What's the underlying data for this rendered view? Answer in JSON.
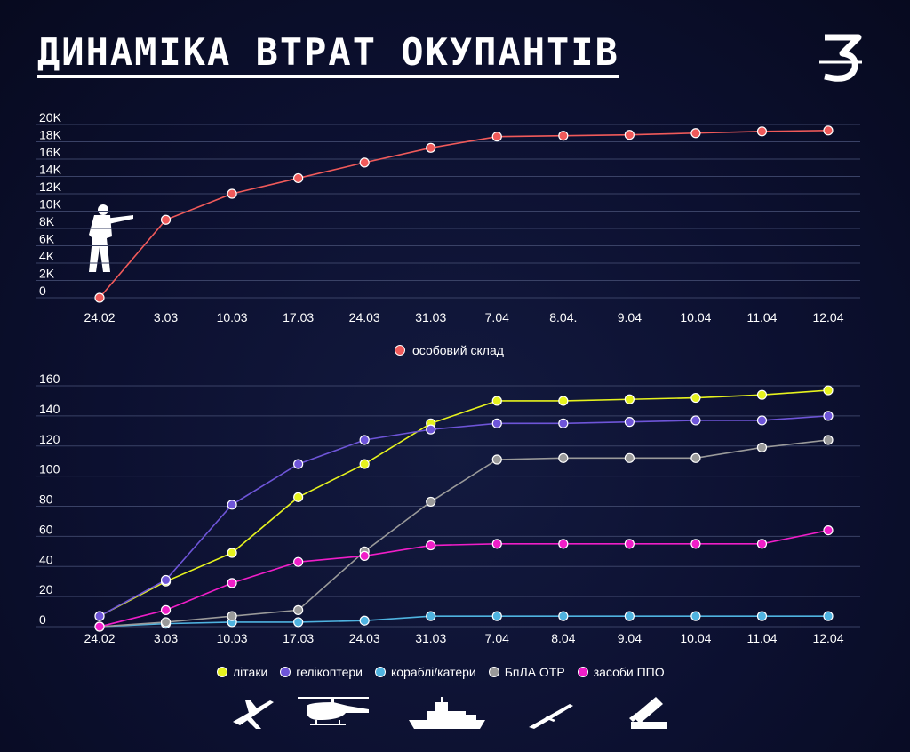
{
  "title": "ДИНАМІКА ВТРАТ ОКУПАНТІВ",
  "logo_text": "З",
  "colors": {
    "background": "#0c1030",
    "grid": "#3a4266",
    "personnel": "#f05a5a",
    "aircraft": "#e6f21e",
    "helicopters": "#6e55d8",
    "ships": "#4fb3e0",
    "drones": "#9a9a9a",
    "air_defense": "#f01ec8"
  },
  "icons": [
    "soldier-icon",
    "airplane-icon",
    "helicopter-icon",
    "warship-icon",
    "drone-icon",
    "air-defense-icon"
  ],
  "chart_data": [
    {
      "type": "line",
      "categories": [
        "24.02",
        "3.03",
        "10.03",
        "17.03",
        "24.03",
        "31.03",
        "7.04",
        "8.04.",
        "9.04",
        "10.04",
        "11.04",
        "12.04"
      ],
      "y_tick_labels": [
        "0",
        "2K",
        "4K",
        "6K",
        "8K",
        "10K",
        "12K",
        "14K",
        "16K",
        "18K",
        "20K"
      ],
      "ylim": [
        0,
        20000
      ],
      "grid": true,
      "legend_placement": "bottom",
      "series": [
        {
          "name": "особовий склад",
          "color": "#f05a5a",
          "values": [
            0,
            9000,
            12000,
            13800,
            15600,
            17300,
            18600,
            18700,
            18800,
            19000,
            19200,
            19300
          ]
        }
      ]
    },
    {
      "type": "line",
      "categories": [
        "24.02",
        "3.03",
        "10.03",
        "17.03",
        "24.03",
        "31.03",
        "7.04",
        "8.04",
        "9.04",
        "10.04",
        "11.04",
        "12.04"
      ],
      "y_tick_labels": [
        "0",
        "20",
        "40",
        "60",
        "80",
        "100",
        "120",
        "140",
        "160"
      ],
      "ylim": [
        0,
        160
      ],
      "grid": true,
      "legend_placement": "bottom",
      "series": [
        {
          "name": "літаки",
          "color": "#e6f21e",
          "values": [
            7,
            30,
            49,
            86,
            108,
            135,
            150,
            150,
            151,
            152,
            154,
            157
          ]
        },
        {
          "name": "гелікоптери",
          "color": "#6e55d8",
          "values": [
            7,
            31,
            81,
            108,
            124,
            131,
            135,
            135,
            136,
            137,
            137,
            140
          ]
        },
        {
          "name": "кораблі/катери",
          "color": "#4fb3e0",
          "values": [
            0,
            2,
            3,
            3,
            4,
            7,
            7,
            7,
            7,
            7,
            7,
            7
          ]
        },
        {
          "name": "БпЛА ОТР",
          "color": "#9a9a9a",
          "values": [
            0,
            3,
            7,
            11,
            50,
            83,
            111,
            112,
            112,
            112,
            119,
            124
          ]
        },
        {
          "name": "засоби ППО",
          "color": "#f01ec8",
          "values": [
            0,
            11,
            29,
            43,
            47,
            54,
            55,
            55,
            55,
            55,
            55,
            64
          ]
        }
      ]
    }
  ]
}
